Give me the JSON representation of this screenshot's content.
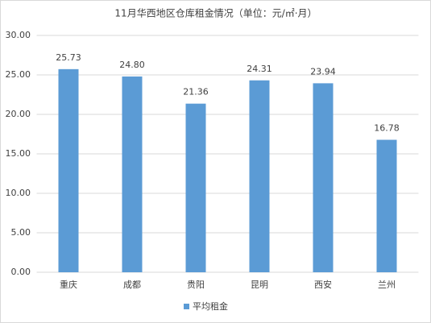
{
  "chart_data": {
    "type": "bar",
    "title": "11月华西地区仓库租金情况（单位：元/㎡·月）",
    "categories": [
      "重庆",
      "成都",
      "贵阳",
      "昆明",
      "西安",
      "兰州"
    ],
    "series": [
      {
        "name": "平均租金",
        "color": "#5b9bd5",
        "values": [
          25.73,
          24.8,
          21.36,
          24.31,
          23.94,
          16.78
        ],
        "value_labels": [
          "25.73",
          "24.80",
          "21.36",
          "24.31",
          "23.94",
          "16.78"
        ]
      }
    ],
    "ylim": [
      0,
      30
    ],
    "yticks": [
      {
        "value": 0,
        "label": "0.00"
      },
      {
        "value": 5,
        "label": "5.00"
      },
      {
        "value": 10,
        "label": "10.00"
      },
      {
        "value": 15,
        "label": "15.00"
      },
      {
        "value": 20,
        "label": "20.00"
      },
      {
        "value": 25,
        "label": "25.00"
      },
      {
        "value": 30,
        "label": "30.00"
      }
    ],
    "grid": true,
    "legend": "bottom"
  }
}
